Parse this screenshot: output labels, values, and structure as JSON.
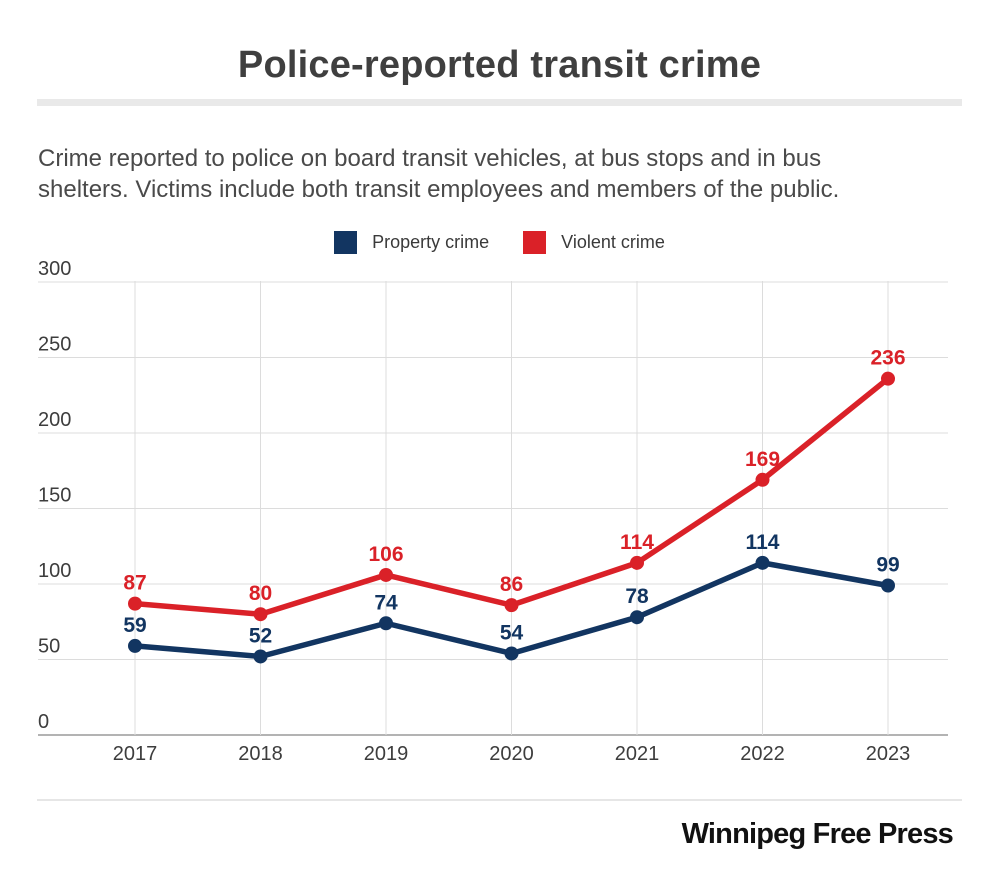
{
  "title": "Police-reported transit crime",
  "subtitle": {
    "lines": [
      "Crime reported to police on board transit vehicles, at bus stops and in bus",
      "shelters. Victims include both transit employees and members of the public."
    ]
  },
  "footer": {
    "brand": "Winnipeg Free Press"
  },
  "chart_data": {
    "type": "line",
    "title": "Police-reported transit crime",
    "categories": [
      "2017",
      "2018",
      "2019",
      "2020",
      "2021",
      "2022",
      "2023"
    ],
    "series": [
      {
        "name": "Property crime",
        "color": "#123561",
        "values": [
          59,
          52,
          74,
          54,
          78,
          114,
          99
        ]
      },
      {
        "name": "Violent crime",
        "color": "#da2128",
        "values": [
          87,
          80,
          106,
          86,
          114,
          169,
          236
        ]
      }
    ],
    "yticks": [
      0,
      50,
      100,
      150,
      200,
      250,
      300
    ],
    "ylim": [
      0,
      300
    ],
    "grid": true,
    "legend_position": "top-center",
    "data_labels": true,
    "axis_label_color": "#3d3d3d",
    "gridline_color": "#dcdcdc",
    "baseline_color": "#b3b3b3"
  }
}
